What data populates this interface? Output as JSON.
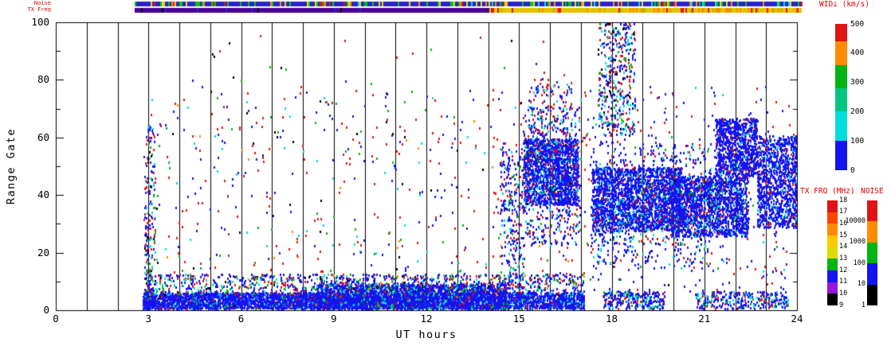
{
  "labels": {
    "noise_strip": "Noise",
    "txfreq_strip": "TX Freq",
    "wid_title": "WID⊥ (km/s)",
    "txfrq_title": "TX FRQ (MHz)",
    "noise_title": "NOISE",
    "xlabel": "UT hours",
    "ylabel": "Range Gate"
  },
  "strips": {
    "noise": {
      "t0": 2.55,
      "t1": 24.15,
      "base_color": "#2B22CC",
      "speck_density": 0.32,
      "speck_palette": [
        [
          "#00C800",
          0.4
        ],
        [
          "#DCDC00",
          0.2
        ],
        [
          "#FF8C00",
          0.15
        ],
        [
          "#E01414",
          0.12
        ],
        [
          "#00DCDC",
          0.13
        ]
      ]
    },
    "txfreq": {
      "segments": [
        {
          "t0": 2.55,
          "t1": 14.05,
          "color": "#4B0096",
          "speck_density": 0.04,
          "speck_palette": [
            [
              "#2B22CC",
              0.6
            ],
            [
              "#000000",
              0.4
            ]
          ]
        },
        {
          "t0": 14.05,
          "t1": 24.15,
          "color": "#E0C400",
          "speck_density": 0.3,
          "speck_palette": [
            [
              "#FF8C00",
              0.45
            ],
            [
              "#E01414",
              0.4
            ],
            [
              "#B4B400",
              0.15
            ]
          ]
        }
      ]
    }
  },
  "chart_data": {
    "type": "scatter",
    "title": "",
    "xlabel": "UT hours",
    "ylabel": "Range Gate",
    "xlim": [
      0,
      24
    ],
    "ylim": [
      0,
      100
    ],
    "x_tick_values": [
      0,
      3,
      6,
      9,
      12,
      15,
      18,
      21,
      24
    ],
    "x_tick_labels": [
      "0",
      "3",
      "6",
      "9",
      "12",
      "15",
      "18",
      "21",
      "24"
    ],
    "y_tick_values": [
      0,
      20,
      40,
      60,
      80,
      100
    ],
    "y_tick_labels": [
      "0",
      "20",
      "40",
      "60",
      "80",
      "100"
    ],
    "x_minor_tick_step": 1,
    "y_minor_tick_step": 10,
    "hour_gridlines": [
      1,
      2,
      3,
      4,
      5,
      6,
      7,
      8,
      9,
      10,
      11,
      12,
      13,
      14,
      15,
      16,
      17,
      18,
      19,
      20,
      21,
      22,
      23
    ],
    "grid": true,
    "legend_position": "right",
    "seed": 1337,
    "point_w": 2,
    "point_h": 3,
    "clusters": [
      {
        "name": "start-column",
        "t": [
          2.85,
          3.2
        ],
        "g": [
          0,
          64
        ],
        "n": 200,
        "palette": [
          [
            "#1414F0",
            0.4
          ],
          [
            "#E01414",
            0.28
          ],
          [
            "#00DCDC",
            0.14
          ],
          [
            "#00B414",
            0.12
          ],
          [
            "#000000",
            0.06
          ]
        ]
      },
      {
        "name": "bottom-band-main",
        "t": [
          2.8,
          17.1
        ],
        "g": [
          0,
          5.5
        ],
        "n": 5200,
        "palette": [
          [
            "#1414F0",
            0.8
          ],
          [
            "#2A64FF",
            0.06
          ],
          [
            "#00DCDC",
            0.06
          ],
          [
            "#00B414",
            0.03
          ],
          [
            "#E01414",
            0.04
          ],
          [
            "#000000",
            0.01
          ]
        ]
      },
      {
        "name": "bottom-band-thick-mid",
        "t": [
          8.4,
          14.6
        ],
        "g": [
          0,
          8.5
        ],
        "n": 2300,
        "palette": [
          [
            "#1414F0",
            0.84
          ],
          [
            "#00DCDC",
            0.08
          ],
          [
            "#E01414",
            0.04
          ],
          [
            "#00B414",
            0.04
          ]
        ]
      },
      {
        "name": "bottom-band-fringe",
        "t": [
          2.9,
          17.1
        ],
        "g": [
          5,
          12
        ],
        "n": 1000,
        "palette": [
          [
            "#1414F0",
            0.5
          ],
          [
            "#E01414",
            0.17
          ],
          [
            "#00DCDC",
            0.14
          ],
          [
            "#00B414",
            0.12
          ],
          [
            "#000000",
            0.04
          ],
          [
            "#FF8C00",
            0.03
          ]
        ]
      },
      {
        "name": "bottom-band-late-1",
        "t": [
          17.7,
          19.7
        ],
        "g": [
          0,
          6
        ],
        "n": 260,
        "palette": [
          [
            "#1414F0",
            0.7
          ],
          [
            "#00DCDC",
            0.12
          ],
          [
            "#E01414",
            0.1
          ],
          [
            "#00B414",
            0.08
          ]
        ]
      },
      {
        "name": "bottom-band-late-2",
        "t": [
          20.7,
          23.7
        ],
        "g": [
          0,
          6
        ],
        "n": 300,
        "palette": [
          [
            "#1414F0",
            0.72
          ],
          [
            "#00DCDC",
            0.12
          ],
          [
            "#E01414",
            0.08
          ],
          [
            "#00B414",
            0.08
          ]
        ]
      },
      {
        "name": "mid-sparse",
        "t": [
          2.9,
          17.2
        ],
        "g": [
          8,
          76
        ],
        "n": 560,
        "palette": [
          [
            "#E01414",
            0.42
          ],
          [
            "#1414F0",
            0.26
          ],
          [
            "#00B414",
            0.1
          ],
          [
            "#00DCDC",
            0.1
          ],
          [
            "#000000",
            0.06
          ],
          [
            "#FF8C00",
            0.06
          ]
        ]
      },
      {
        "name": "top-sparse",
        "t": [
          3.2,
          17.0
        ],
        "g": [
          76,
          95
        ],
        "n": 26,
        "palette": [
          [
            "#E01414",
            0.5
          ],
          [
            "#1414F0",
            0.2
          ],
          [
            "#00B414",
            0.15
          ],
          [
            "#000000",
            0.15
          ]
        ]
      },
      {
        "name": "column-14-8",
        "t": [
          14.35,
          15.15
        ],
        "g": [
          8,
          56
        ],
        "n": 260,
        "palette": [
          [
            "#1414F0",
            0.6
          ],
          [
            "#E01414",
            0.18
          ],
          [
            "#00DCDC",
            0.14
          ],
          [
            "#00B414",
            0.08
          ]
        ]
      },
      {
        "name": "blob-15-17-core",
        "t": [
          15.15,
          16.9
        ],
        "g": [
          36,
          59
        ],
        "n": 1500,
        "palette": [
          [
            "#1414F0",
            0.86
          ],
          [
            "#00DCDC",
            0.08
          ],
          [
            "#E01414",
            0.04
          ],
          [
            "#000000",
            0.02
          ]
        ]
      },
      {
        "name": "blob-15-17-halo",
        "t": [
          15.1,
          16.95
        ],
        "g": [
          22,
          70
        ],
        "n": 520,
        "palette": [
          [
            "#1414F0",
            0.7
          ],
          [
            "#E01414",
            0.13
          ],
          [
            "#00DCDC",
            0.13
          ],
          [
            "#00B414",
            0.04
          ]
        ]
      },
      {
        "name": "spray-16-high",
        "t": [
          15.3,
          16.7
        ],
        "g": [
          60,
          80
        ],
        "n": 120,
        "palette": [
          [
            "#1414F0",
            0.5
          ],
          [
            "#E01414",
            0.3
          ],
          [
            "#00DCDC",
            0.2
          ]
        ]
      },
      {
        "name": "blob-17-20",
        "t": [
          17.35,
          20.25
        ],
        "g": [
          27,
          49
        ],
        "n": 2100,
        "palette": [
          [
            "#1414F0",
            0.88
          ],
          [
            "#00DCDC",
            0.06
          ],
          [
            "#E01414",
            0.04
          ],
          [
            "#00B414",
            0.02
          ]
        ]
      },
      {
        "name": "blob-20-22",
        "t": [
          19.9,
          22.4
        ],
        "g": [
          25,
          46
        ],
        "n": 1700,
        "palette": [
          [
            "#1414F0",
            0.88
          ],
          [
            "#00DCDC",
            0.06
          ],
          [
            "#E01414",
            0.04
          ],
          [
            "#00B414",
            0.02
          ]
        ]
      },
      {
        "name": "blob-21-22-high",
        "t": [
          21.35,
          22.7
        ],
        "g": [
          46,
          66
        ],
        "n": 900,
        "palette": [
          [
            "#1414F0",
            0.9
          ],
          [
            "#00DCDC",
            0.06
          ],
          [
            "#E01414",
            0.04
          ]
        ]
      },
      {
        "name": "blob-23-24",
        "t": [
          22.7,
          24.0
        ],
        "g": [
          28,
          60
        ],
        "n": 1100,
        "palette": [
          [
            "#1414F0",
            0.88
          ],
          [
            "#00DCDC",
            0.07
          ],
          [
            "#E01414",
            0.05
          ]
        ]
      },
      {
        "name": "blob-17-21-halo",
        "t": [
          17.3,
          21.2
        ],
        "g": [
          14,
          58
        ],
        "n": 620,
        "palette": [
          [
            "#1414F0",
            0.74
          ],
          [
            "#E01414",
            0.1
          ],
          [
            "#00DCDC",
            0.12
          ],
          [
            "#00B414",
            0.04
          ]
        ]
      },
      {
        "name": "spray-18-top",
        "t": [
          17.55,
          18.75
        ],
        "g": [
          60,
          100
        ],
        "n": 420,
        "palette": [
          [
            "#1414F0",
            0.42
          ],
          [
            "#00DCDC",
            0.2
          ],
          [
            "#E01414",
            0.22
          ],
          [
            "#00B414",
            0.06
          ],
          [
            "#000000",
            0.1
          ]
        ]
      },
      {
        "name": "late-sparse",
        "t": [
          17.2,
          24.0
        ],
        "g": [
          6,
          78
        ],
        "n": 330,
        "palette": [
          [
            "#1414F0",
            0.5
          ],
          [
            "#E01414",
            0.26
          ],
          [
            "#00DCDC",
            0.12
          ],
          [
            "#00B414",
            0.06
          ],
          [
            "#000000",
            0.06
          ]
        ]
      }
    ],
    "colorbars": {
      "wid": {
        "title": "WID⊥ (km/s)",
        "min": 0,
        "max": 500,
        "tick_values": [
          500,
          400,
          300,
          200,
          100,
          0
        ],
        "tick_labels": [
          "500",
          "400",
          "300",
          "200",
          "100",
          "0"
        ],
        "segments": [
          {
            "v0": 0,
            "v1": 100,
            "color": "#1414F0"
          },
          {
            "v0": 100,
            "v1": 200,
            "color": "#00DCDC"
          },
          {
            "v0": 200,
            "v1": 280,
            "color": "#00C882"
          },
          {
            "v0": 280,
            "v1": 360,
            "color": "#00B414"
          },
          {
            "v0": 360,
            "v1": 440,
            "color": "#FF8C00"
          },
          {
            "v0": 440,
            "v1": 500,
            "color": "#E01414"
          }
        ]
      },
      "txfrq": {
        "title": "TX FRQ (MHz)",
        "min": 9,
        "max": 18,
        "tick_values": [
          18,
          17,
          16,
          15,
          14,
          13,
          12,
          11,
          10,
          9
        ],
        "tick_labels": [
          "18",
          "17",
          "16",
          "15",
          "14",
          "13",
          "12",
          "11",
          "10",
          "9"
        ],
        "segments": [
          {
            "v0": 9,
            "v1": 10,
            "color": "#000000"
          },
          {
            "v0": 10,
            "v1": 11,
            "color": "#9614DC"
          },
          {
            "v0": 11,
            "v1": 12,
            "color": "#1414F0"
          },
          {
            "v0": 12,
            "v1": 13,
            "color": "#00B414"
          },
          {
            "v0": 13,
            "v1": 14,
            "color": "#DCDC00"
          },
          {
            "v0": 14,
            "v1": 15,
            "color": "#FFC800"
          },
          {
            "v0": 15,
            "v1": 16,
            "color": "#FF8C00"
          },
          {
            "v0": 16,
            "v1": 17,
            "color": "#FF4600"
          },
          {
            "v0": 17,
            "v1": 18,
            "color": "#E01414"
          }
        ]
      },
      "noise": {
        "title": "NOISE",
        "scale": "log",
        "tick_values": [
          1,
          10,
          100,
          1000,
          10000
        ],
        "tick_labels": [
          "1",
          "10",
          "100",
          "1000",
          "10000"
        ],
        "segments_bottom_to_top": [
          "#000000",
          "#1414F0",
          "#00B414",
          "#FF8C00",
          "#E01414"
        ]
      }
    }
  }
}
